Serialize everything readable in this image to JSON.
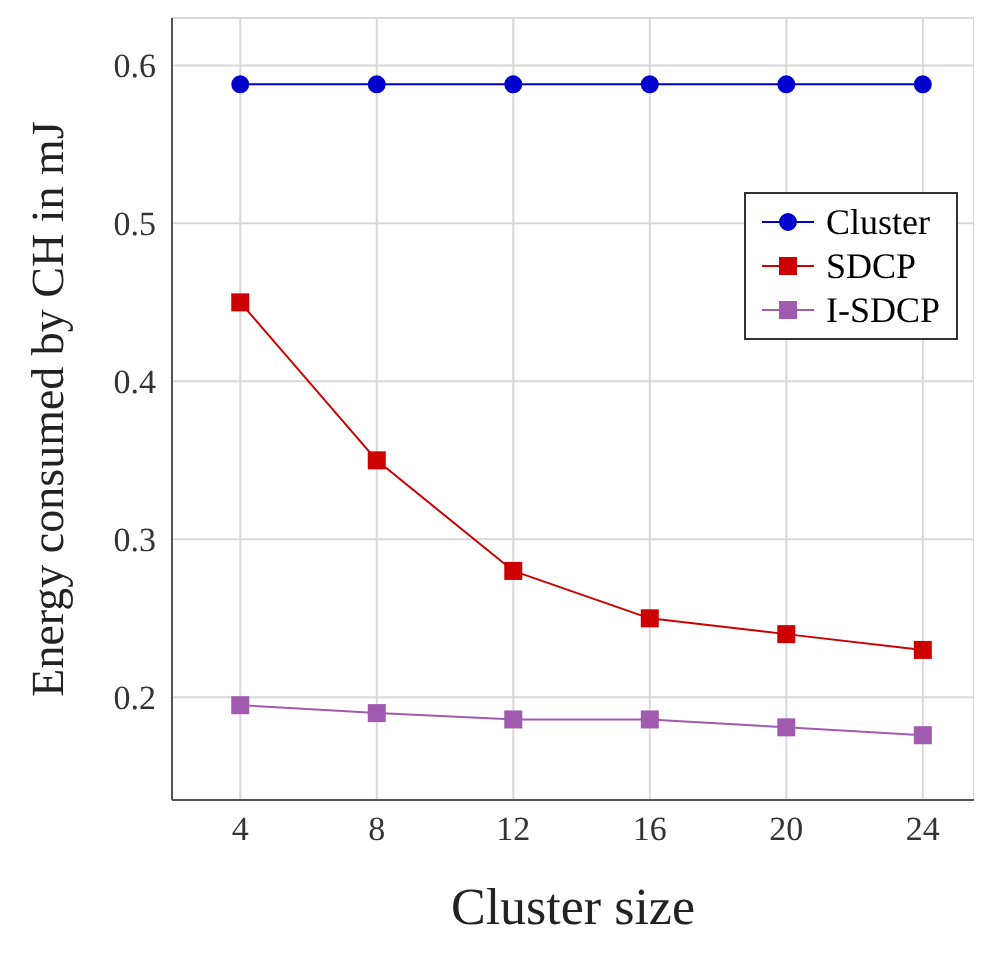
{
  "chart_data": {
    "type": "line",
    "xlabel": "Cluster size",
    "ylabel": "Energy consumed by CH in mJ",
    "x": [
      4,
      8,
      12,
      16,
      20,
      24
    ],
    "xlim": [
      2,
      25.5
    ],
    "xticks": [
      4,
      8,
      12,
      16,
      20,
      24
    ],
    "ylim": [
      0.135,
      0.63
    ],
    "yticks": [
      0.2,
      0.3,
      0.4,
      0.5,
      0.6
    ],
    "grid": true,
    "legend": "top right",
    "series": [
      {
        "name": "Cluster",
        "color": "#0000cc",
        "marker": "circle",
        "values": [
          0.588,
          0.588,
          0.588,
          0.588,
          0.588,
          0.588
        ]
      },
      {
        "name": "SDCP",
        "color": "#cc0000",
        "marker": "square",
        "values": [
          0.45,
          0.35,
          0.28,
          0.25,
          0.24,
          0.23
        ]
      },
      {
        "name": "I-SDCP",
        "color": "#a05ab0",
        "marker": "square",
        "values": [
          0.195,
          0.19,
          0.186,
          0.186,
          0.181,
          0.176
        ]
      }
    ]
  }
}
